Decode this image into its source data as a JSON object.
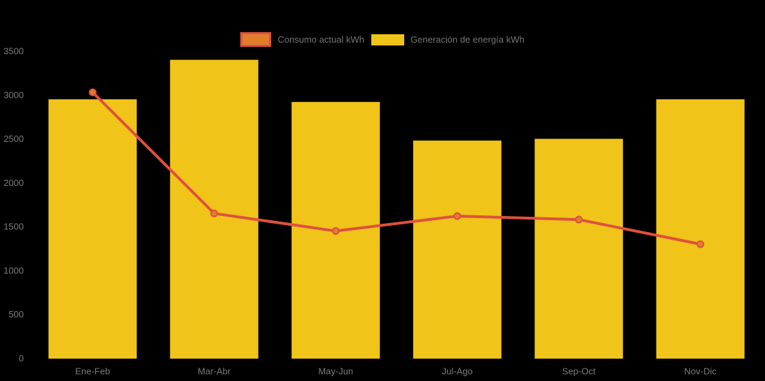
{
  "chart_data": {
    "type": "bar",
    "subtype": "bar-line-combo",
    "title": "",
    "categories": [
      "Ene-Feb",
      "Mar-Abr",
      "May-Jun",
      "Jul-Ago",
      "Sep-Oct",
      "Nov-Dic"
    ],
    "series": [
      {
        "name": "Consumo actual kWh",
        "type": "line",
        "values": [
          3030,
          1650,
          1450,
          1620,
          1580,
          1300
        ],
        "color": "#DE513E",
        "point_color": "#E07E2A"
      },
      {
        "name": "Generación de energía kWh",
        "type": "bar",
        "values": [
          2950,
          3400,
          2920,
          2480,
          2500,
          2950
        ],
        "color": "#F0C419"
      }
    ],
    "y_axis": {
      "min": 0,
      "max": 3500,
      "ticks": [
        0,
        500,
        1000,
        1500,
        2000,
        2500,
        3000,
        3500
      ]
    },
    "x_axis": {
      "label": ""
    },
    "legend_position": "top",
    "grid": false,
    "colors": {
      "background": "#000000",
      "axis_text": "#7A7A7A",
      "legend_text": "#757575"
    }
  }
}
